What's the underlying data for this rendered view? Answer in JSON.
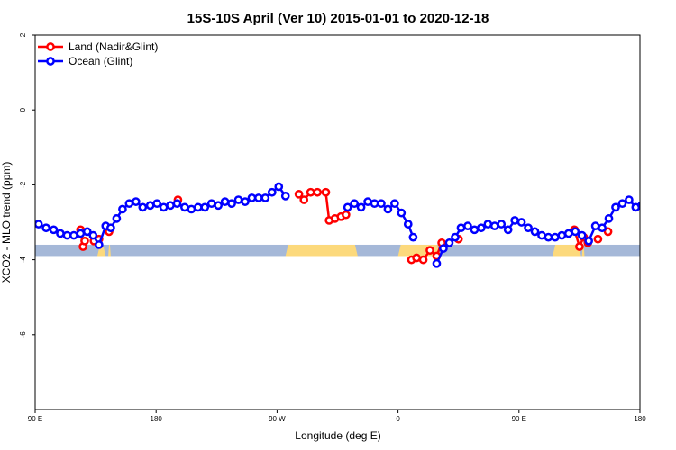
{
  "chart_data": {
    "type": "line",
    "title": "15S-10S April (Ver 10)   2015-01-01 to 2020-12-18",
    "xlabel": "Longitude (deg E)",
    "ylabel": "XCO2 - MLO trend (ppm)",
    "xlim": [
      90,
      450
    ],
    "ylim": [
      -8,
      2
    ],
    "xticks": [
      {
        "value": 90,
        "label": "90 E"
      },
      {
        "value": 162,
        "label": "180"
      },
      {
        "value": 234,
        "label": "90 W"
      },
      {
        "value": 306,
        "label": "0"
      },
      {
        "value": 378,
        "label": "90 E"
      },
      {
        "value": 450,
        "label": "180"
      }
    ],
    "yticks": [
      {
        "value": 2,
        "label": "2"
      },
      {
        "value": 0,
        "label": "0"
      },
      {
        "value": -2,
        "label": "-2"
      },
      {
        "value": -4,
        "label": "-4"
      },
      {
        "value": -6,
        "label": "-6"
      }
    ],
    "grid": false,
    "legend_position": "top-left",
    "land_mask": {
      "baseline": -3.75,
      "band_half_height": 0.15,
      "ocean_color": "#a5b8d8",
      "land_color": "#fcd97c",
      "land_segments": [
        [
          127,
          132
        ],
        [
          133.5,
          135
        ],
        [
          239,
          282
        ],
        [
          306,
          331
        ],
        [
          398,
          415
        ],
        [
          415.5,
          417
        ]
      ]
    },
    "series": [
      {
        "name": "Land (Nadir&Glint)",
        "color": "#ff0000",
        "points": [
          [
            117,
            -3.2
          ],
          [
            118.5,
            -3.65
          ],
          [
            119.5,
            -3.5
          ],
          [
            125,
            -3.5
          ],
          [
            128,
            -3.45
          ],
          [
            134,
            -3.25
          ],
          [
            175,
            -2.4
          ],
          [
            247,
            -2.25
          ],
          [
            250,
            -2.4
          ],
          [
            254,
            -2.2
          ],
          [
            258,
            -2.2
          ],
          [
            263,
            -2.2
          ],
          [
            265,
            -2.95
          ],
          [
            268.5,
            -2.9
          ],
          [
            272,
            -2.85
          ],
          [
            275,
            -2.8
          ],
          [
            314,
            -4.0
          ],
          [
            317,
            -3.95
          ],
          [
            321,
            -4.0
          ],
          [
            325,
            -3.75
          ],
          [
            329,
            -3.9
          ],
          [
            332,
            -3.55
          ],
          [
            342,
            -3.45
          ],
          [
            411,
            -3.2
          ],
          [
            414,
            -3.65
          ],
          [
            416.5,
            -3.4
          ],
          [
            419,
            -3.55
          ],
          [
            425,
            -3.45
          ],
          [
            431,
            -3.25
          ]
        ]
      },
      {
        "name": "Ocean (Glint)",
        "color": "#0000ff",
        "points": [
          [
            92,
            -3.05
          ],
          [
            96.5,
            -3.15
          ],
          [
            101,
            -3.2
          ],
          [
            105,
            -3.3
          ],
          [
            109,
            -3.35
          ],
          [
            113,
            -3.35
          ],
          [
            117,
            -3.3
          ],
          [
            121,
            -3.25
          ],
          [
            124.5,
            -3.35
          ],
          [
            128,
            -3.6
          ],
          [
            132,
            -3.1
          ],
          [
            135,
            -3.15
          ],
          [
            138.5,
            -2.9
          ],
          [
            142,
            -2.65
          ],
          [
            146,
            -2.5
          ],
          [
            150,
            -2.45
          ],
          [
            154,
            -2.6
          ],
          [
            158.5,
            -2.55
          ],
          [
            162.5,
            -2.5
          ],
          [
            166.5,
            -2.6
          ],
          [
            170.5,
            -2.55
          ],
          [
            174.5,
            -2.5
          ],
          [
            179,
            -2.6
          ],
          [
            183,
            -2.65
          ],
          [
            187,
            -2.6
          ],
          [
            191,
            -2.6
          ],
          [
            195,
            -2.5
          ],
          [
            199,
            -2.55
          ],
          [
            203,
            -2.45
          ],
          [
            207,
            -2.5
          ],
          [
            211,
            -2.4
          ],
          [
            215,
            -2.45
          ],
          [
            219,
            -2.35
          ],
          [
            223,
            -2.35
          ],
          [
            227,
            -2.35
          ],
          [
            231,
            -2.2
          ],
          [
            235,
            -2.05
          ],
          [
            239,
            -2.3
          ],
          [
            276,
            -2.6
          ],
          [
            280,
            -2.5
          ],
          [
            284,
            -2.6
          ],
          [
            288,
            -2.45
          ],
          [
            292,
            -2.5
          ],
          [
            296,
            -2.5
          ],
          [
            300,
            -2.65
          ],
          [
            304,
            -2.5
          ],
          [
            308,
            -2.75
          ],
          [
            312,
            -3.05
          ],
          [
            315,
            -3.4
          ],
          [
            329,
            -4.1
          ],
          [
            333,
            -3.7
          ],
          [
            336.5,
            -3.55
          ],
          [
            340,
            -3.4
          ],
          [
            343.5,
            -3.15
          ],
          [
            347.5,
            -3.1
          ],
          [
            351.5,
            -3.2
          ],
          [
            355.5,
            -3.15
          ],
          [
            359.5,
            -3.05
          ],
          [
            363.5,
            -3.1
          ],
          [
            367.5,
            -3.05
          ],
          [
            371.5,
            -3.2
          ],
          [
            375.5,
            -2.95
          ],
          [
            379.5,
            -3.0
          ],
          [
            383.5,
            -3.15
          ],
          [
            387.5,
            -3.25
          ],
          [
            391.5,
            -3.35
          ],
          [
            395.5,
            -3.4
          ],
          [
            399.5,
            -3.4
          ],
          [
            403.5,
            -3.35
          ],
          [
            407.5,
            -3.3
          ],
          [
            411.5,
            -3.25
          ],
          [
            415.5,
            -3.35
          ],
          [
            419.5,
            -3.5
          ],
          [
            423.5,
            -3.1
          ],
          [
            427.5,
            -3.15
          ],
          [
            431.5,
            -2.9
          ],
          [
            435.5,
            -2.6
          ],
          [
            439.5,
            -2.5
          ],
          [
            443.5,
            -2.4
          ],
          [
            447.5,
            -2.6
          ],
          [
            451,
            -2.55
          ]
        ]
      }
    ]
  }
}
